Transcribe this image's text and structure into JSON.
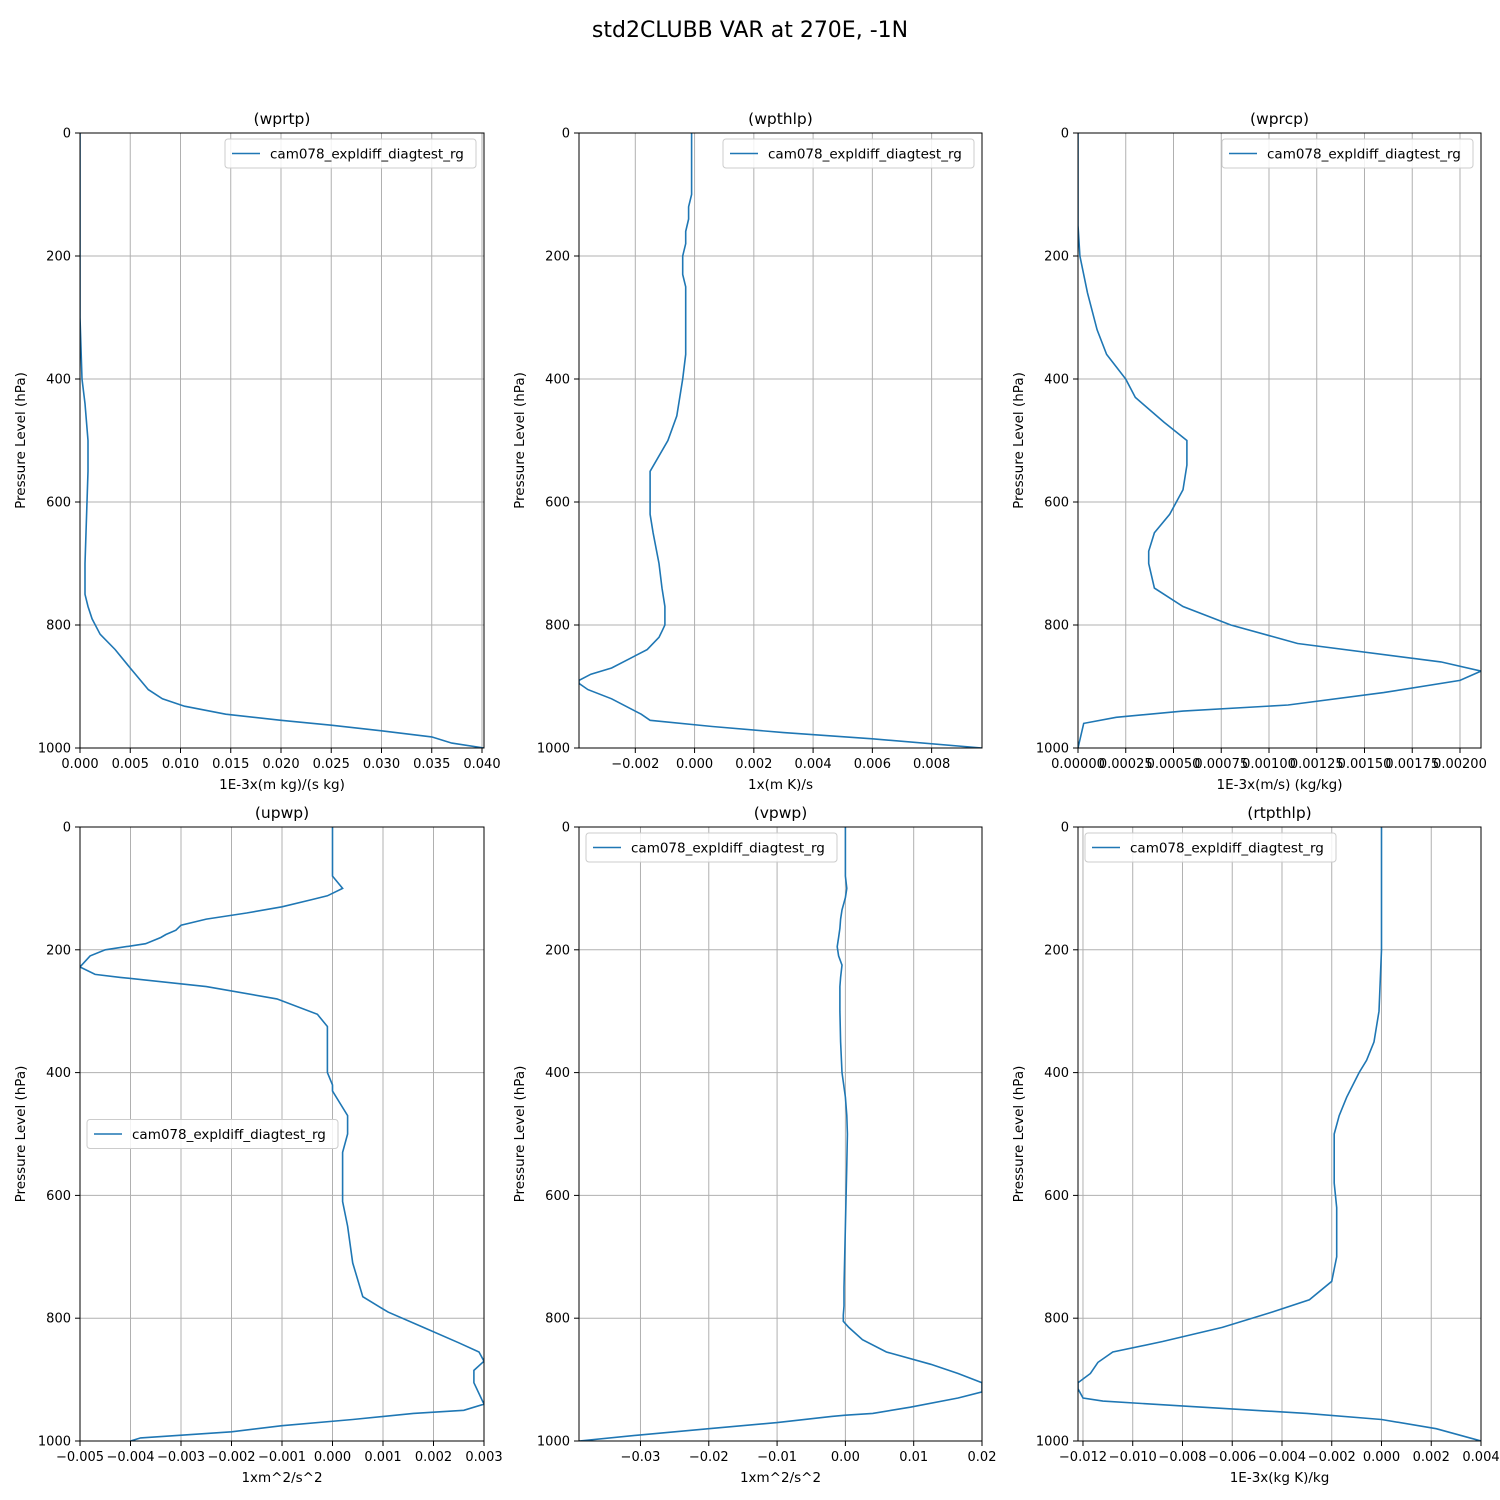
{
  "title": "std2CLUBB VAR at 270E, -1N",
  "colors": {
    "line": "#1f77b4",
    "grid": "#b0b0b0",
    "axis": "#000000"
  },
  "chart_data": [
    {
      "type": "line",
      "title": "(wprtp)",
      "xlabel": "1E-3x(m kg)/(s kg)",
      "ylabel": "Pressure Level (hPa)",
      "xlim": [
        0,
        0.0402
      ],
      "ylim": [
        1000,
        0
      ],
      "xticks": [
        0,
        0.005,
        0.01,
        0.015,
        0.02,
        0.025,
        0.03,
        0.035,
        0.04
      ],
      "xtick_labels": [
        "0.000",
        "0.005",
        "0.010",
        "0.015",
        "0.020",
        "0.025",
        "0.030",
        "0.035",
        "0.040"
      ],
      "yticks": [
        0,
        200,
        400,
        600,
        800,
        1000
      ],
      "ytick_labels": [
        "0",
        "200",
        "400",
        "600",
        "800",
        "1000"
      ],
      "grid": true,
      "legend": {
        "placement": "top-right"
      },
      "series": [
        {
          "name": "cam078_expldiff_diagtest_rg",
          "x": [
            0,
            0,
            0,
            0.0002,
            0.0005,
            0.0008,
            0.0008,
            0.0007,
            0.0006,
            0.0005,
            0.0005,
            0.0008,
            0.0012,
            0.002,
            0.0035,
            0.005,
            0.0068,
            0.0082,
            0.0104,
            0.0145,
            0.02,
            0.025,
            0.03,
            0.035,
            0.037,
            0.0402
          ],
          "y": [
            0,
            200,
            300,
            400,
            440,
            500,
            550,
            600,
            650,
            700,
            750,
            770,
            790,
            815,
            840,
            870,
            905,
            920,
            932,
            945,
            955,
            963,
            972,
            982,
            992,
            1000
          ]
        }
      ]
    },
    {
      "type": "line",
      "title": "(wpthlp)",
      "xlabel": "1x(m K)/s",
      "ylabel": "Pressure Level (hPa)",
      "xlim": [
        -0.0039,
        0.0097
      ],
      "ylim": [
        1000,
        0
      ],
      "xticks": [
        -0.002,
        0,
        0.002,
        0.004,
        0.006,
        0.008
      ],
      "xtick_labels": [
        "−0.002",
        "0.000",
        "0.002",
        "0.004",
        "0.006",
        "0.008"
      ],
      "yticks": [
        0,
        200,
        400,
        600,
        800,
        1000
      ],
      "ytick_labels": [
        "0",
        "200",
        "400",
        "600",
        "800",
        "1000"
      ],
      "grid": true,
      "legend": {
        "placement": "top-right"
      },
      "series": [
        {
          "name": "cam078_expldiff_diagtest_rg",
          "x": [
            -0.0001,
            -0.0001,
            -0.0001,
            -0.0001,
            -0.0002,
            -0.0002,
            -0.0003,
            -0.0003,
            -0.0004,
            -0.0004,
            -0.0003,
            -0.0003,
            -0.0003,
            -0.0003,
            -0.0004,
            -0.0006,
            -0.0009,
            -0.0015,
            -0.0015,
            -0.0015,
            -0.0014,
            -0.0012,
            -0.0011,
            -0.001,
            -0.001,
            -0.001,
            -0.0011,
            -0.0012,
            -0.0016,
            -0.0022,
            -0.0028,
            -0.0035,
            -0.0039,
            -0.0039,
            -0.0036,
            -0.0028,
            -0.0018,
            -0.0015,
            0.0006,
            0.003,
            0.006,
            0.0097
          ],
          "y": [
            0,
            40,
            80,
            100,
            120,
            140,
            160,
            180,
            200,
            230,
            250,
            280,
            320,
            360,
            400,
            460,
            500,
            550,
            580,
            620,
            650,
            700,
            740,
            770,
            790,
            800,
            810,
            820,
            840,
            855,
            870,
            880,
            890,
            895,
            905,
            920,
            945,
            955,
            965,
            975,
            985,
            1000
          ]
        }
      ]
    },
    {
      "type": "line",
      "title": "(wprcp)",
      "xlabel": "1E-3x(m/s) (kg/kg)",
      "ylabel": "Pressure Level (hPa)",
      "xlim": [
        0,
        0.00211
      ],
      "ylim": [
        1000,
        0
      ],
      "xticks": [
        0,
        0.00025,
        0.0005,
        0.00075,
        0.001,
        0.00125,
        0.0015,
        0.00175,
        0.002
      ],
      "xtick_labels": [
        "0.00000",
        "0.00025",
        "0.00050",
        "0.00075",
        "0.00100",
        "0.00125",
        "0.00150",
        "0.00175",
        "0.00200"
      ],
      "yticks": [
        0,
        200,
        400,
        600,
        800,
        1000
      ],
      "ytick_labels": [
        "0",
        "200",
        "400",
        "600",
        "800",
        "1000"
      ],
      "grid": true,
      "legend": {
        "placement": "top-right"
      },
      "series": [
        {
          "name": "cam078_expldiff_diagtest_rg",
          "x": [
            0,
            0,
            1e-05,
            5e-05,
            0.0001,
            0.00015,
            0.0002,
            0.00025,
            0.0003,
            0.00045,
            0.00057,
            0.00057,
            0.00055,
            0.00048,
            0.0004,
            0.00037,
            0.00037,
            0.0004,
            0.00055,
            0.0008,
            0.00115,
            0.0019,
            0.00211,
            0.002,
            0.0016,
            0.0011,
            0.00055,
            0.0002,
            3e-05,
            0
          ],
          "y": [
            0,
            150,
            200,
            260,
            320,
            360,
            380,
            400,
            430,
            470,
            500,
            540,
            580,
            620,
            650,
            680,
            700,
            740,
            770,
            800,
            830,
            860,
            875,
            890,
            910,
            930,
            940,
            950,
            960,
            1000
          ]
        }
      ]
    },
    {
      "type": "line",
      "title": "(upwp)",
      "xlabel": "1xm^2/s^2",
      "ylabel": "Pressure Level (hPa)",
      "xlim": [
        -0.005,
        0.003
      ],
      "ylim": [
        1000,
        0
      ],
      "xticks": [
        -0.005,
        -0.004,
        -0.003,
        -0.002,
        -0.001,
        0,
        0.001,
        0.002,
        0.003
      ],
      "xtick_labels": [
        "−0.005",
        "−0.004",
        "−0.003",
        "−0.002",
        "−0.001",
        "0.000",
        "0.001",
        "0.002",
        "0.003"
      ],
      "yticks": [
        0,
        200,
        400,
        600,
        800,
        1000
      ],
      "ytick_labels": [
        "0",
        "200",
        "400",
        "600",
        "800",
        "1000"
      ],
      "grid": true,
      "legend": {
        "placement": "center-left"
      },
      "series": [
        {
          "name": "cam078_expldiff_diagtest_rg",
          "x": [
            0,
            0,
            0,
            0.0002,
            -0.0001,
            -0.0004,
            -0.001,
            -0.0017,
            -0.0025,
            -0.003,
            -0.0031,
            -0.0033,
            -0.0034,
            -0.0037,
            -0.0045,
            -0.0048,
            -0.005,
            -0.0047,
            -0.0042,
            -0.0025,
            -0.0011,
            -0.0003,
            -0.0001,
            -0.0001,
            -0.0001,
            -0.0001,
            0,
            0,
            0.0003,
            0.0003,
            0.0002,
            0.0002,
            0.0002,
            0.0003,
            0.0004,
            0.0006,
            0.0011,
            0.0018,
            0.0025,
            0.0029,
            0.003,
            0.0028,
            0.0028,
            0.003,
            0.0026,
            0.0016,
            0.0004,
            -0.001,
            -0.002,
            -0.0038,
            -0.004
          ],
          "y": [
            0,
            60,
            80,
            100,
            112,
            118,
            130,
            140,
            150,
            160,
            168,
            175,
            180,
            190,
            200,
            210,
            228,
            240,
            245,
            260,
            280,
            305,
            325,
            350,
            380,
            400,
            420,
            430,
            470,
            500,
            530,
            570,
            610,
            650,
            710,
            765,
            790,
            815,
            840,
            855,
            870,
            885,
            905,
            940,
            950,
            955,
            965,
            975,
            985,
            995,
            1000
          ]
        }
      ]
    },
    {
      "type": "line",
      "title": "(vpwp)",
      "xlabel": "1xm^2/s^2",
      "ylabel": "Pressure Level (hPa)",
      "xlim": [
        -0.039,
        0.02
      ],
      "ylim": [
        1000,
        0
      ],
      "xticks": [
        -0.03,
        -0.02,
        -0.01,
        0,
        0.01,
        0.02
      ],
      "xtick_labels": [
        "−0.03",
        "−0.02",
        "−0.01",
        "0.00",
        "0.01",
        "0.02"
      ],
      "yticks": [
        0,
        200,
        400,
        600,
        800,
        1000
      ],
      "ytick_labels": [
        "0",
        "200",
        "400",
        "600",
        "800",
        "1000"
      ],
      "grid": true,
      "legend": {
        "placement": "top-left"
      },
      "series": [
        {
          "name": "cam078_expldiff_diagtest_rg",
          "x": [
            0,
            0,
            0,
            0.0002,
            0,
            -0.0005,
            -0.0007,
            -0.0008,
            -0.001,
            -0.0012,
            -0.001,
            -0.0005,
            -0.0007,
            -0.0008,
            -0.0008,
            -0.0008,
            -0.0007,
            -0.0005,
            0,
            0.0002,
            0.0003,
            0.0002,
            0.0001,
            0,
            -0.0001,
            -0.0002,
            -0.0002,
            -0.0003,
            -0.0003,
            0.0005,
            0.0025,
            0.006,
            0.0125,
            0.0165,
            0.02,
            0.02,
            0.0165,
            0.0095,
            0.004,
            0,
            -0.002,
            -0.01,
            -0.02,
            -0.03,
            -0.039
          ],
          "y": [
            0,
            40,
            80,
            100,
            115,
            135,
            150,
            165,
            180,
            195,
            210,
            225,
            245,
            260,
            280,
            300,
            350,
            400,
            440,
            470,
            500,
            550,
            600,
            650,
            700,
            750,
            780,
            795,
            805,
            815,
            835,
            855,
            875,
            890,
            905,
            920,
            930,
            945,
            955,
            958,
            960,
            970,
            980,
            990,
            1000
          ]
        }
      ]
    },
    {
      "type": "line",
      "title": "(rtpthlp)",
      "xlabel": "1E-3x(kg K)/kg",
      "ylabel": "Pressure Level (hPa)",
      "xlim": [
        -0.0122,
        0.004
      ],
      "ylim": [
        1000,
        0
      ],
      "xticks": [
        -0.012,
        -0.01,
        -0.008,
        -0.006,
        -0.004,
        -0.002,
        0,
        0.002,
        0.004
      ],
      "xtick_labels": [
        "−0.012",
        "−0.010",
        "−0.008",
        "−0.006",
        "−0.004",
        "−0.002",
        "0.000",
        "0.002",
        "0.004"
      ],
      "yticks": [
        0,
        200,
        400,
        600,
        800,
        1000
      ],
      "ytick_labels": [
        "0",
        "200",
        "400",
        "600",
        "800",
        "1000"
      ],
      "grid": true,
      "legend": {
        "placement": "top-left"
      },
      "series": [
        {
          "name": "cam078_expldiff_diagtest_rg",
          "x": [
            0,
            0,
            -0.0001,
            -0.0003,
            -0.0006,
            -0.0009,
            -0.0014,
            -0.0017,
            -0.0019,
            -0.0019,
            -0.0019,
            -0.0018,
            -0.0018,
            -0.0018,
            -0.002,
            -0.0029,
            -0.0044,
            -0.0064,
            -0.0088,
            -0.0108,
            -0.0114,
            -0.0117,
            -0.0122,
            -0.0122,
            -0.012,
            -0.0112,
            -0.0072,
            -0.003,
            0,
            0.0022,
            0.004
          ],
          "y": [
            0,
            200,
            300,
            350,
            380,
            400,
            440,
            470,
            500,
            550,
            580,
            620,
            650,
            700,
            740,
            770,
            790,
            815,
            838,
            855,
            872,
            890,
            905,
            915,
            930,
            935,
            945,
            955,
            965,
            980,
            1000
          ]
        }
      ]
    }
  ]
}
